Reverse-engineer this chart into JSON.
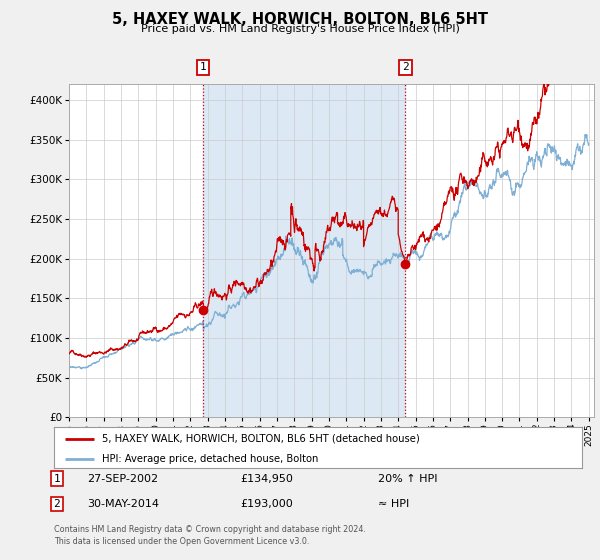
{
  "title": "5, HAXEY WALK, HORWICH, BOLTON, BL6 5HT",
  "subtitle": "Price paid vs. HM Land Registry's House Price Index (HPI)",
  "legend_label_red": "5, HAXEY WALK, HORWICH, BOLTON, BL6 5HT (detached house)",
  "legend_label_blue": "HPI: Average price, detached house, Bolton",
  "annotation1_date": "27-SEP-2002",
  "annotation1_price": "£134,950",
  "annotation1_hpi": "20% ↑ HPI",
  "annotation2_date": "30-MAY-2014",
  "annotation2_price": "£193,000",
  "annotation2_hpi": "≈ HPI",
  "event1_year": 2002.75,
  "event1_value": 134950,
  "event2_year": 2014.42,
  "event2_value": 193000,
  "footer_line1": "Contains HM Land Registry data © Crown copyright and database right 2024.",
  "footer_line2": "This data is licensed under the Open Government Licence v3.0.",
  "ylim": [
    0,
    420000
  ],
  "yticks": [
    0,
    50000,
    100000,
    150000,
    200000,
    250000,
    300000,
    350000,
    400000
  ],
  "xlim_start": 1995.0,
  "xlim_end": 2025.3,
  "background_color": "#f0f0f0",
  "plot_bg_color": "#ffffff",
  "shade_color": "#dce9f5",
  "red_color": "#cc0000",
  "blue_color": "#7fafd4",
  "grid_color": "#cccccc",
  "legend_border_color": "#999999",
  "seed": 42
}
